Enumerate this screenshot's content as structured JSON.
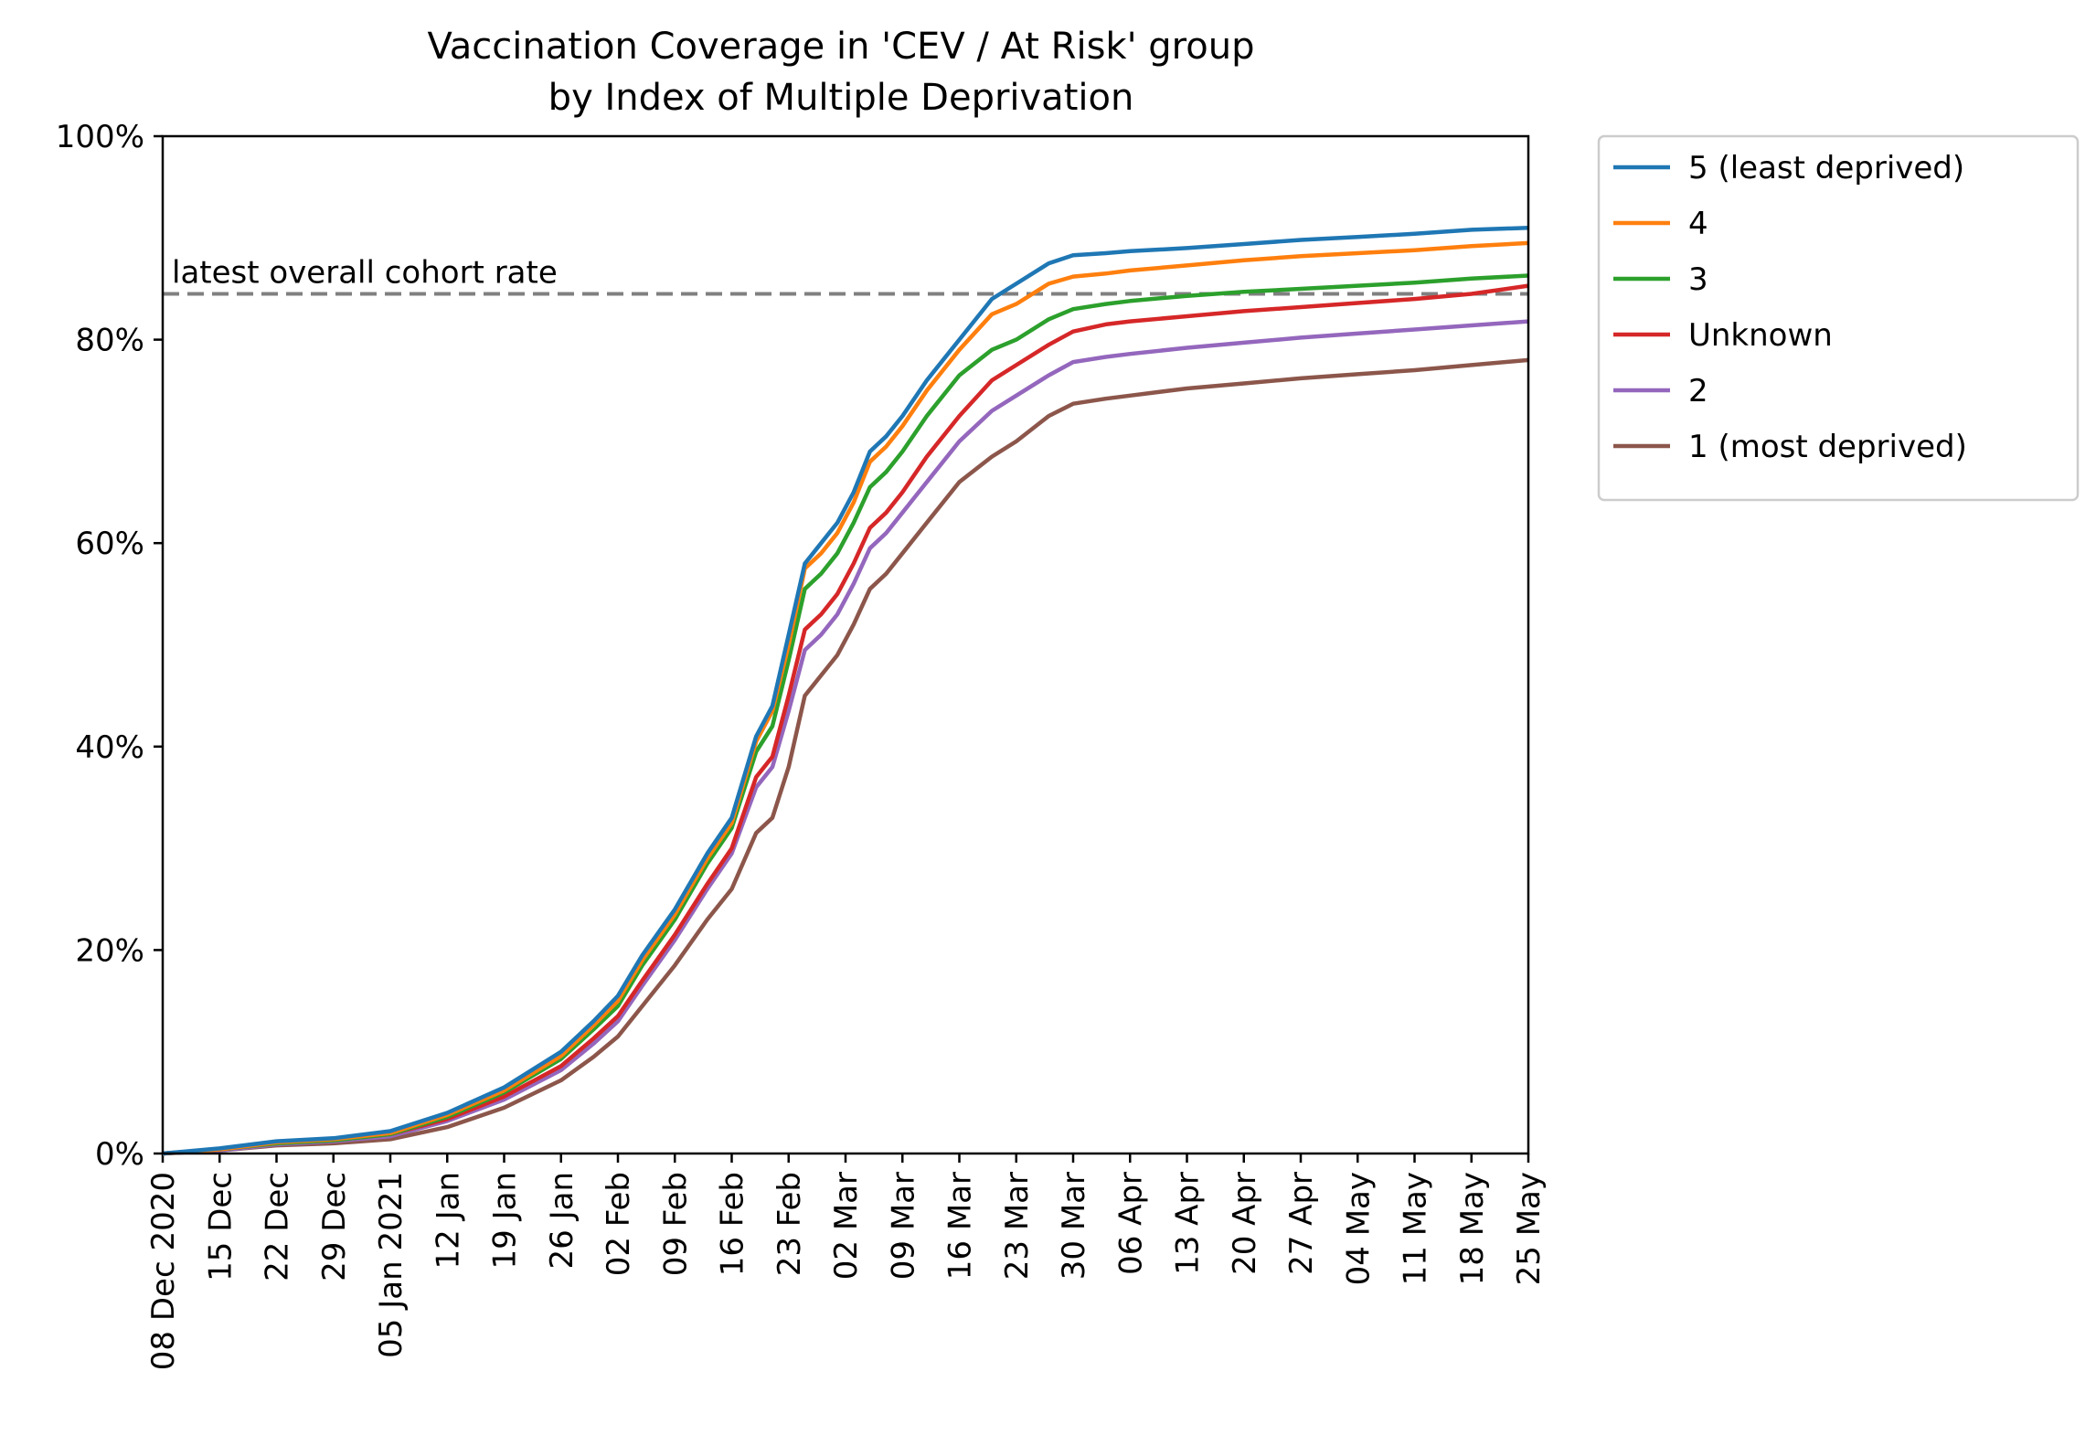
{
  "chart_data": {
    "type": "line",
    "title": [
      "Vaccination Coverage in 'CEV / At Risk' group",
      "by Index of Multiple Deprivation"
    ],
    "xlabel": "",
    "ylabel": "",
    "ylim": [
      0,
      100
    ],
    "yticks": [
      "0%",
      "20%",
      "40%",
      "60%",
      "80%",
      "100%"
    ],
    "x_dates": [
      "2020-12-08",
      "2021-05-25"
    ],
    "xticks": [
      {
        "date": "2020-12-08",
        "label": "08 Dec 2020"
      },
      {
        "date": "2020-12-15",
        "label": "15 Dec"
      },
      {
        "date": "2020-12-22",
        "label": "22 Dec"
      },
      {
        "date": "2020-12-29",
        "label": "29 Dec"
      },
      {
        "date": "2021-01-05",
        "label": "05 Jan 2021"
      },
      {
        "date": "2021-01-12",
        "label": "12 Jan"
      },
      {
        "date": "2021-01-19",
        "label": "19 Jan"
      },
      {
        "date": "2021-01-26",
        "label": "26 Jan"
      },
      {
        "date": "2021-02-02",
        "label": "02 Feb"
      },
      {
        "date": "2021-02-09",
        "label": "09 Feb"
      },
      {
        "date": "2021-02-16",
        "label": "16 Feb"
      },
      {
        "date": "2021-02-23",
        "label": "23 Feb"
      },
      {
        "date": "2021-03-02",
        "label": "02 Mar"
      },
      {
        "date": "2021-03-09",
        "label": "09 Mar"
      },
      {
        "date": "2021-03-16",
        "label": "16 Mar"
      },
      {
        "date": "2021-03-23",
        "label": "23 Mar"
      },
      {
        "date": "2021-03-30",
        "label": "30 Mar"
      },
      {
        "date": "2021-04-06",
        "label": "06 Apr"
      },
      {
        "date": "2021-04-13",
        "label": "13 Apr"
      },
      {
        "date": "2021-04-20",
        "label": "20 Apr"
      },
      {
        "date": "2021-04-27",
        "label": "27 Apr"
      },
      {
        "date": "2021-05-04",
        "label": "04 May"
      },
      {
        "date": "2021-05-11",
        "label": "11 May"
      },
      {
        "date": "2021-05-18",
        "label": "18 May"
      },
      {
        "date": "2021-05-25",
        "label": "25 May"
      }
    ],
    "reference_line": {
      "label": "latest overall cohort rate",
      "value": 84.5,
      "color": "#808080",
      "style": "dashed"
    },
    "legend_position": "outside-right-top",
    "x": [
      "2020-12-08",
      "2020-12-15",
      "2020-12-22",
      "2020-12-29",
      "2021-01-05",
      "2021-01-12",
      "2021-01-19",
      "2021-01-26",
      "2021-01-30",
      "2021-02-02",
      "2021-02-05",
      "2021-02-09",
      "2021-02-13",
      "2021-02-16",
      "2021-02-19",
      "2021-02-21",
      "2021-02-23",
      "2021-02-25",
      "2021-02-27",
      "2021-03-01",
      "2021-03-03",
      "2021-03-05",
      "2021-03-07",
      "2021-03-09",
      "2021-03-12",
      "2021-03-16",
      "2021-03-20",
      "2021-03-23",
      "2021-03-27",
      "2021-03-30",
      "2021-04-03",
      "2021-04-06",
      "2021-04-13",
      "2021-04-20",
      "2021-04-27",
      "2021-05-04",
      "2021-05-11",
      "2021-05-18",
      "2021-05-25"
    ],
    "series": [
      {
        "name": "5 (least deprived)",
        "color": "#1f77b4",
        "values": [
          0,
          0.5,
          1.2,
          1.5,
          2.2,
          4.0,
          6.5,
          10.0,
          13.0,
          15.5,
          19.5,
          24.0,
          29.5,
          33.0,
          41.0,
          44.0,
          51.0,
          58.0,
          60.0,
          62.0,
          65.0,
          69.0,
          70.5,
          72.5,
          76.0,
          80.0,
          84.0,
          85.5,
          87.5,
          88.3,
          88.5,
          88.7,
          89.0,
          89.4,
          89.8,
          90.1,
          90.4,
          90.8,
          91.0
        ]
      },
      {
        "name": "4",
        "color": "#ff7f0e",
        "values": [
          0,
          0.4,
          1.1,
          1.4,
          2.0,
          3.8,
          6.2,
          9.6,
          12.6,
          15.0,
          19.0,
          23.5,
          29.0,
          32.5,
          40.5,
          43.5,
          50.0,
          57.5,
          59.0,
          61.0,
          64.0,
          68.0,
          69.5,
          71.5,
          75.0,
          79.0,
          82.5,
          83.5,
          85.5,
          86.2,
          86.5,
          86.8,
          87.3,
          87.8,
          88.2,
          88.5,
          88.8,
          89.2,
          89.5
        ]
      },
      {
        "name": "3",
        "color": "#2ca02c",
        "values": [
          0,
          0.4,
          1.0,
          1.3,
          1.9,
          3.6,
          6.0,
          9.3,
          12.2,
          14.5,
          18.5,
          23.0,
          28.5,
          32.0,
          39.5,
          42.0,
          48.5,
          55.5,
          57.0,
          59.0,
          62.0,
          65.5,
          67.0,
          69.0,
          72.5,
          76.5,
          79.0,
          80.0,
          82.0,
          83.0,
          83.5,
          83.8,
          84.3,
          84.7,
          85.0,
          85.3,
          85.6,
          86.0,
          86.3
        ]
      },
      {
        "name": "Unknown",
        "color": "#d62728",
        "values": [
          0,
          0.4,
          1.0,
          1.3,
          1.9,
          3.4,
          5.6,
          8.6,
          11.3,
          13.5,
          17.0,
          21.5,
          26.5,
          30.0,
          37.0,
          39.0,
          45.0,
          51.5,
          53.0,
          55.0,
          58.0,
          61.5,
          63.0,
          65.0,
          68.5,
          72.5,
          76.0,
          77.5,
          79.5,
          80.8,
          81.5,
          81.8,
          82.3,
          82.8,
          83.2,
          83.6,
          84.0,
          84.5,
          85.3
        ]
      },
      {
        "name": "2",
        "color": "#9467bd",
        "values": [
          0,
          0.3,
          0.9,
          1.2,
          1.7,
          3.2,
          5.3,
          8.2,
          10.8,
          13.0,
          16.5,
          21.0,
          26.0,
          29.5,
          36.0,
          38.0,
          43.5,
          49.5,
          51.0,
          53.0,
          56.0,
          59.5,
          61.0,
          63.0,
          66.0,
          70.0,
          73.0,
          74.5,
          76.5,
          77.8,
          78.3,
          78.6,
          79.2,
          79.7,
          80.2,
          80.6,
          81.0,
          81.4,
          81.8
        ]
      },
      {
        "name": "1 (most deprived)",
        "color": "#8c564b",
        "values": [
          0,
          0.3,
          0.8,
          1.0,
          1.4,
          2.6,
          4.5,
          7.2,
          9.5,
          11.5,
          14.5,
          18.5,
          23.0,
          26.0,
          31.5,
          33.0,
          38.0,
          45.0,
          47.0,
          49.0,
          52.0,
          55.5,
          57.0,
          59.0,
          62.0,
          66.0,
          68.5,
          70.0,
          72.5,
          73.7,
          74.2,
          74.5,
          75.2,
          75.7,
          76.2,
          76.6,
          77.0,
          77.5,
          78.0
        ]
      }
    ]
  }
}
